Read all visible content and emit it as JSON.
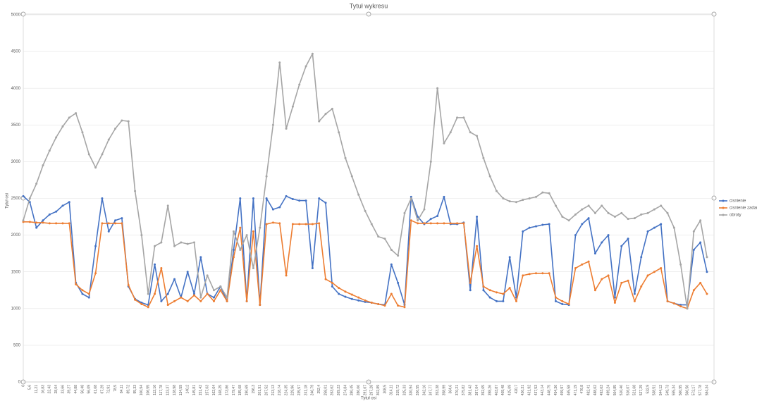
{
  "chart_data": {
    "type": "line",
    "title": "Tytuł wykresu",
    "x_label": "Tytuł osi",
    "y_label": "Tytuł osi",
    "categories": [
      "0",
      "5,6",
      "11,21",
      "16,83",
      "22,43",
      "28,04",
      "33,66",
      "39,27",
      "44,88",
      "50,48",
      "56,09",
      "61,68",
      "67,29",
      "72,91",
      "78,5",
      "84,11",
      "89,72",
      "95,33",
      "100,94",
      "106,55",
      "112,16",
      "117,78",
      "123,37",
      "128,98",
      "134,59",
      "140,2",
      "145,81",
      "151,42",
      "157,03",
      "162,64",
      "168,25",
      "173,86",
      "179,47",
      "185,08",
      "190,69",
      "196,3",
      "201,91",
      "207,52",
      "213,13",
      "218,74",
      "224,35",
      "229,96",
      "235,57",
      "241,18",
      "246,79",
      "252,4",
      "258,01",
      "263,62",
      "269,23",
      "274,84",
      "280,45",
      "286,06",
      "291,67",
      "297,28",
      "302,89",
      "308,5",
      "314,11",
      "319,72",
      "325,33",
      "330,94",
      "336,55",
      "342,16",
      "347,77",
      "353,38",
      "358,99",
      "364,6",
      "370,21",
      "375,82",
      "381,43",
      "387,04",
      "392,65",
      "398,26",
      "403,87",
      "409,48",
      "415,09",
      "420,7",
      "426,31",
      "431,92",
      "437,53",
      "443,14",
      "448,75",
      "454,36",
      "459,97",
      "465,58",
      "471,19",
      "476,8",
      "482,41",
      "488,02",
      "493,63",
      "499,24",
      "504,85",
      "510,46",
      "516,07",
      "521,68",
      "527,29",
      "532,9",
      "538,51",
      "544,12",
      "549,73",
      "555,34",
      "560,95",
      "566,56",
      "572,17",
      "577,78",
      "584,34"
    ],
    "series": [
      {
        "name": "cisnienie",
        "color": "#4472c4",
        "values": [
          2530,
          2450,
          2100,
          2200,
          2280,
          2320,
          2400,
          2450,
          1350,
          1200,
          1150,
          1850,
          2500,
          2050,
          2200,
          2230,
          1300,
          1130,
          1080,
          1050,
          1600,
          1100,
          1200,
          1400,
          1150,
          1500,
          1200,
          1700,
          1200,
          1150,
          1300,
          1100,
          1800,
          2500,
          1100,
          2500,
          1050,
          2500,
          2350,
          2380,
          2530,
          2490,
          2470,
          2470,
          1550,
          2500,
          2440,
          1300,
          1200,
          1160,
          1130,
          1110,
          1090,
          1080,
          1060,
          1050,
          1600,
          1350,
          1050,
          2520,
          2250,
          2150,
          2220,
          2260,
          2520,
          2150,
          2150,
          2170,
          1250,
          2250,
          1250,
          1150,
          1100,
          1100,
          1700,
          1150,
          2050,
          2100,
          2120,
          2140,
          2150,
          1100,
          1060,
          1050,
          2000,
          2150,
          2230,
          1750,
          1900,
          2000,
          1150,
          1850,
          1950,
          1200,
          1700,
          2050,
          2100,
          2150,
          1100,
          1070,
          1050,
          1050,
          1800,
          1900,
          1500
        ]
      },
      {
        "name": "cisnienie zadane",
        "color": "#ed7d31",
        "values": [
          2180,
          2180,
          2170,
          2170,
          2160,
          2160,
          2160,
          2160,
          1330,
          1250,
          1200,
          1480,
          2160,
          2160,
          2160,
          2160,
          1320,
          1120,
          1060,
          1020,
          1200,
          1550,
          1050,
          1100,
          1150,
          1100,
          1180,
          1100,
          1200,
          1100,
          1250,
          1100,
          1700,
          2100,
          1100,
          2050,
          1050,
          2150,
          2170,
          2160,
          1450,
          2150,
          2150,
          2150,
          2150,
          2160,
          1400,
          1350,
          1280,
          1230,
          1190,
          1150,
          1110,
          1080,
          1060,
          1040,
          1200,
          1040,
          1020,
          2200,
          2160,
          2160,
          2160,
          2160,
          2160,
          2160,
          2160,
          2160,
          1350,
          1850,
          1300,
          1250,
          1220,
          1200,
          1280,
          1100,
          1450,
          1470,
          1480,
          1480,
          1480,
          1150,
          1100,
          1060,
          1550,
          1600,
          1640,
          1250,
          1400,
          1450,
          1080,
          1350,
          1380,
          1100,
          1300,
          1450,
          1500,
          1550,
          1100,
          1070,
          1030,
          1000,
          1250,
          1350,
          1200
        ]
      },
      {
        "name": "obroty",
        "color": "#a5a5a5",
        "values": [
          2200,
          2500,
          2700,
          2950,
          3150,
          3330,
          3480,
          3600,
          3660,
          3400,
          3100,
          2920,
          3100,
          3300,
          3450,
          3560,
          3550,
          2600,
          2000,
          1200,
          1850,
          1900,
          2400,
          1850,
          1900,
          1880,
          1900,
          1150,
          1450,
          1250,
          1300,
          1150,
          2050,
          1800,
          2000,
          1550,
          2100,
          2800,
          3500,
          4350,
          3450,
          3750,
          4050,
          4300,
          4470,
          3550,
          3650,
          3720,
          3400,
          3050,
          2800,
          2550,
          2330,
          2150,
          1980,
          1950,
          1800,
          1720,
          2300,
          2500,
          2200,
          2350,
          3000,
          4000,
          3250,
          3400,
          3600,
          3600,
          3400,
          3350,
          3050,
          2800,
          2600,
          2500,
          2460,
          2450,
          2480,
          2500,
          2520,
          2580,
          2570,
          2400,
          2250,
          2200,
          2280,
          2350,
          2400,
          2300,
          2400,
          2300,
          2250,
          2300,
          2220,
          2230,
          2280,
          2300,
          2350,
          2400,
          2300,
          2100,
          1600,
          1000,
          2050,
          2200,
          1700
        ]
      }
    ],
    "ylim": [
      0,
      5000
    ],
    "yticks": [
      0,
      500,
      1000,
      1500,
      2000,
      2500,
      3000,
      3500,
      4000,
      4500,
      5000
    ],
    "grid": true,
    "legend": "right"
  }
}
